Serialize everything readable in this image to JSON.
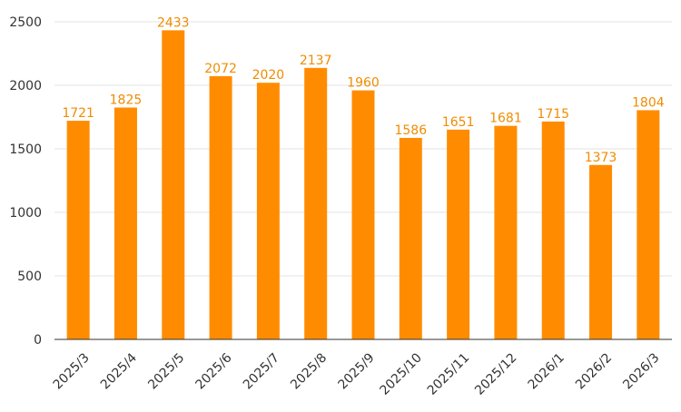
{
  "chart_data": {
    "type": "bar",
    "title": "",
    "xlabel": "",
    "ylabel": "",
    "categories": [
      "2025/3",
      "2025/4",
      "2025/5",
      "2025/6",
      "2025/7",
      "2025/8",
      "2025/9",
      "2025/10",
      "2025/11",
      "2025/12",
      "2026/1",
      "2026/2",
      "2026/3"
    ],
    "values": [
      1721,
      1825,
      2433,
      2072,
      2020,
      2137,
      1960,
      1586,
      1651,
      1681,
      1715,
      1373,
      1804
    ],
    "ylim": [
      0,
      2500
    ],
    "yticks": [
      0,
      500,
      1000,
      1500,
      2000,
      2500
    ],
    "grid": "horizontal",
    "legend": "none",
    "bar_color": "#ff8c00",
    "label_color": "#f08c00",
    "data_labels": true
  }
}
